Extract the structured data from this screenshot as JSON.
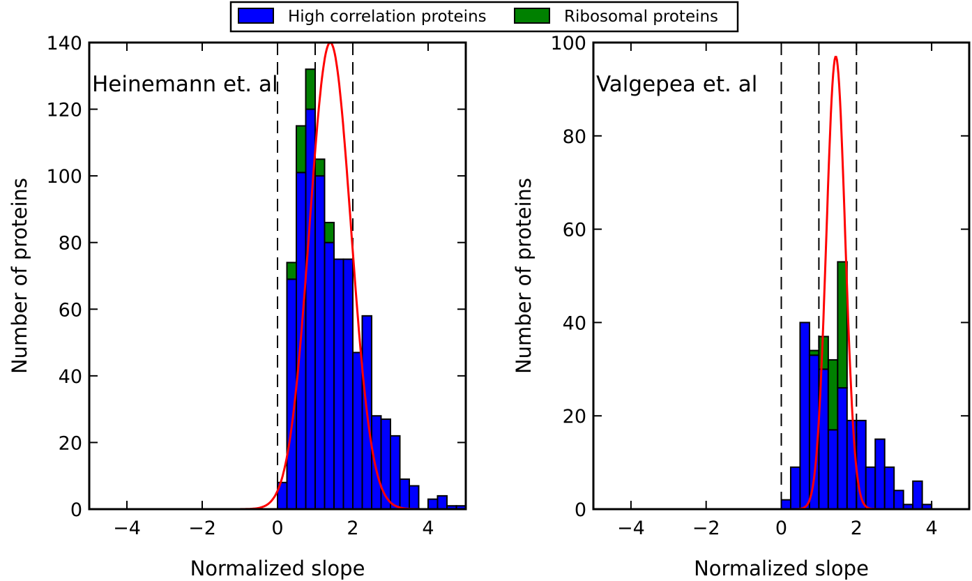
{
  "legend": {
    "entries": [
      {
        "name": "High correlation proteins",
        "color": "#0000ff"
      },
      {
        "name": "Ribosomal proteins",
        "color": "#008000"
      }
    ],
    "placement": "top-center"
  },
  "chart_data": [
    {
      "type": "bar",
      "stacked": true,
      "annotation": "Heinemann et. al",
      "xlabel": "Normalized slope",
      "ylabel": "Number of proteins",
      "xlim": [
        -5,
        5
      ],
      "ylim": [
        0,
        140
      ],
      "xticks": [
        -4,
        -2,
        0,
        2,
        4
      ],
      "xtick_labels": [
        "−4",
        "−2",
        "0",
        "2",
        "4"
      ],
      "yticks": [
        0,
        20,
        40,
        60,
        80,
        100,
        120,
        140
      ],
      "bin_width": 0.25,
      "bin_starts": [
        0,
        0.25,
        0.5,
        0.75,
        1.0,
        1.25,
        1.5,
        1.75,
        2.0,
        2.25,
        2.5,
        2.75,
        3.0,
        3.25,
        3.5,
        3.75,
        4.0,
        4.25,
        4.5,
        4.75
      ],
      "series": [
        {
          "name": "High correlation proteins",
          "color": "#0000ff",
          "values": [
            8,
            69,
            101,
            120,
            100,
            80,
            75,
            75,
            47,
            58,
            28,
            27,
            22,
            9,
            7,
            0,
            3,
            4,
            1,
            1
          ]
        },
        {
          "name": "Ribosomal proteins",
          "color": "#008000",
          "values": [
            0,
            5,
            14,
            12,
            5,
            6,
            0,
            0,
            0,
            0,
            0,
            0,
            0,
            0,
            0,
            0,
            0,
            0,
            0,
            0
          ]
        }
      ],
      "fit_curve": {
        "type": "gaussian",
        "color": "#ff0000",
        "mean": 1.4,
        "sigma": 0.55,
        "peak": 140
      },
      "vlines": [
        0,
        1,
        2
      ],
      "grid": false
    },
    {
      "type": "bar",
      "stacked": true,
      "annotation": "Valgepea et. al",
      "xlabel": "Normalized slope",
      "ylabel": "Number of proteins",
      "xlim": [
        -5,
        5
      ],
      "ylim": [
        0,
        100
      ],
      "xticks": [
        -4,
        -2,
        0,
        2,
        4
      ],
      "xtick_labels": [
        "−4",
        "−2",
        "0",
        "2",
        "4"
      ],
      "yticks": [
        0,
        20,
        40,
        60,
        80,
        100
      ],
      "bin_width": 0.25,
      "bin_starts": [
        0,
        0.25,
        0.5,
        0.75,
        1.0,
        1.25,
        1.5,
        1.75,
        2.0,
        2.25,
        2.5,
        2.75,
        3.0,
        3.25,
        3.5,
        3.75
      ],
      "series": [
        {
          "name": "High correlation proteins",
          "color": "#0000ff",
          "values": [
            2,
            9,
            40,
            33,
            30,
            17,
            26,
            19,
            19,
            9,
            15,
            9,
            4,
            1,
            6,
            1
          ]
        },
        {
          "name": "Ribosomal proteins",
          "color": "#008000",
          "values": [
            0,
            0,
            0,
            1,
            7,
            15,
            27,
            0,
            0,
            0,
            0,
            0,
            0,
            0,
            0,
            0
          ]
        }
      ],
      "fit_curve": {
        "type": "gaussian",
        "color": "#ff0000",
        "mean": 1.45,
        "sigma": 0.25,
        "peak": 97
      },
      "vlines": [
        0,
        1,
        2
      ],
      "grid": false
    }
  ]
}
